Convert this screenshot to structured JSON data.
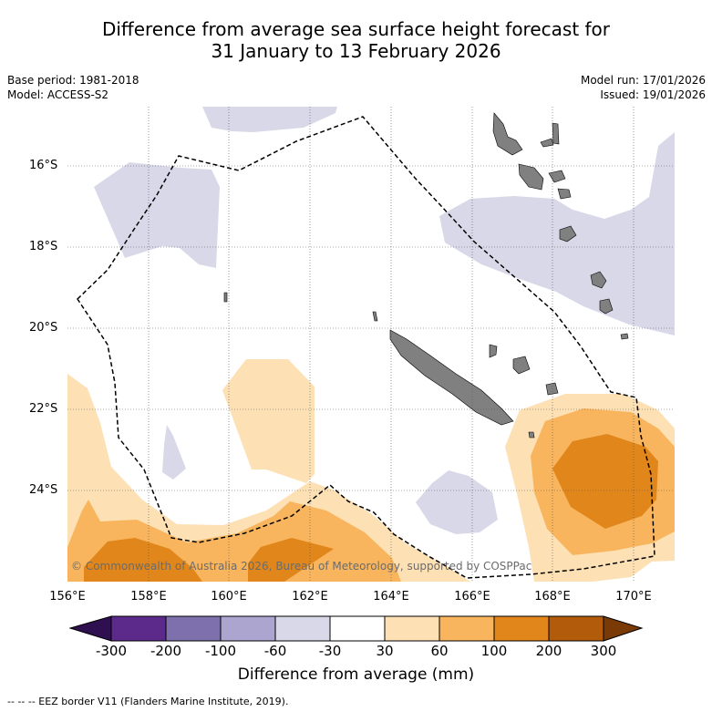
{
  "title": {
    "line1": "Difference from average sea surface height forecast for",
    "line2": "31 January to 13 February 2026"
  },
  "meta": {
    "base_period": "Base period: 1981-2018",
    "model": "Model: ACCESS-S2",
    "model_run": "Model run: 17/01/2026",
    "issued": "Issued: 19/01/2026"
  },
  "map": {
    "lat_labels": [
      "16°S",
      "18°S",
      "20°S",
      "22°S",
      "24°S"
    ],
    "lon_labels": [
      "156°E",
      "158°E",
      "160°E",
      "162°E",
      "164°E",
      "166°E",
      "168°E",
      "170°E"
    ],
    "credit": "© Commonwealth of Australia 2026, Bureau of Meteorology, supported by COSPPac",
    "features": {
      "land": "New Caledonia and Vanuatu islands",
      "eez_border": "dashed line"
    }
  },
  "colorbar": {
    "ticks": [
      "-300",
      "-200",
      "-100",
      "-60",
      "-30",
      "30",
      "60",
      "100",
      "200",
      "300"
    ],
    "colors": [
      "#2e0f4f",
      "#5b2a8a",
      "#7e70ad",
      "#aba5cf",
      "#d8d8e8",
      "#ffffff",
      "#fde0b4",
      "#f8b55d",
      "#e0861a",
      "#b15b0b",
      "#7a3a05"
    ],
    "label": "Difference from average (mm)"
  },
  "footer": {
    "eez": "--  --  -- EEZ border V11 (Flanders Marine Institute, 2019)."
  }
}
